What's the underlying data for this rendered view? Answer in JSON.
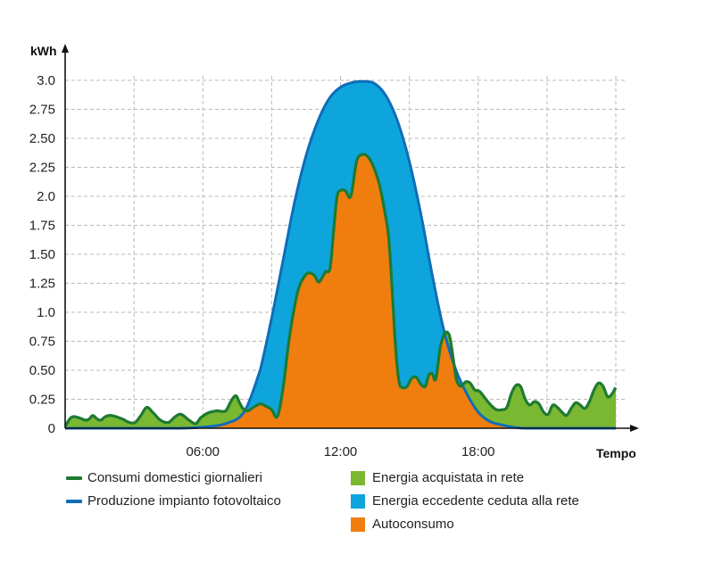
{
  "chart_data": {
    "type": "area",
    "ylabel": "kWh",
    "xlabel": "Tempo",
    "ylim": [
      0,
      3.0
    ],
    "xlim": [
      0,
      24
    ],
    "y_ticks": [
      "0",
      "0.25",
      "0.50",
      "0.75",
      "1.0",
      "1.25",
      "1.50",
      "1.75",
      "2.0",
      "2.25",
      "2.50",
      "2.75",
      "3.0"
    ],
    "x_ticks": [
      {
        "x": 6,
        "label": "06:00"
      },
      {
        "x": 12,
        "label": "12:00"
      },
      {
        "x": 18,
        "label": "18:00"
      }
    ],
    "grid": true,
    "series": [
      {
        "name": "Consumi domestici giornalieri",
        "color": "#1e7a32",
        "x": [
          0,
          0.2,
          0.35,
          0.6,
          0.9,
          1.05,
          1.2,
          1.4,
          1.55,
          1.75,
          2.0,
          2.5,
          2.8,
          3.05,
          3.3,
          3.55,
          3.8,
          4.15,
          4.5,
          4.8,
          5.05,
          5.4,
          5.7,
          5.9,
          6.2,
          6.6,
          7.0,
          7.25,
          7.45,
          7.6,
          7.75,
          7.95,
          8.2,
          8.5,
          8.75,
          9.0,
          9.25,
          9.5,
          9.75,
          10.0,
          10.2,
          10.4,
          10.6,
          10.85,
          11.05,
          11.2,
          11.35,
          11.55,
          11.7,
          11.85,
          12.0,
          12.2,
          12.45,
          12.7,
          12.95,
          13.2,
          13.45,
          13.7,
          13.9,
          14.1,
          14.25,
          14.4,
          14.55,
          14.7,
          14.9,
          15.1,
          15.3,
          15.5,
          15.7,
          15.85,
          16.0,
          16.15,
          16.35,
          16.55,
          16.75,
          16.9,
          17.05,
          17.25,
          17.45,
          17.65,
          17.85,
          18.05,
          18.3,
          18.55,
          18.8,
          19.05,
          19.25,
          19.45,
          19.65,
          19.85,
          20.05,
          20.25,
          20.45,
          20.65,
          20.85,
          21.05,
          21.25,
          21.45,
          21.65,
          21.85,
          22.05,
          22.25,
          22.45,
          22.65,
          22.85,
          23.05,
          23.25,
          23.45,
          23.65,
          23.85,
          24.0
        ],
        "values": [
          0.02,
          0.08,
          0.1,
          0.09,
          0.07,
          0.08,
          0.11,
          0.08,
          0.07,
          0.1,
          0.11,
          0.08,
          0.05,
          0.05,
          0.11,
          0.18,
          0.14,
          0.07,
          0.05,
          0.1,
          0.12,
          0.07,
          0.04,
          0.09,
          0.13,
          0.15,
          0.15,
          0.24,
          0.28,
          0.22,
          0.17,
          0.15,
          0.18,
          0.21,
          0.19,
          0.16,
          0.1,
          0.35,
          0.75,
          1.05,
          1.22,
          1.3,
          1.34,
          1.32,
          1.26,
          1.3,
          1.35,
          1.38,
          1.7,
          2.0,
          2.05,
          2.05,
          2.0,
          2.3,
          2.36,
          2.34,
          2.25,
          2.1,
          1.9,
          1.65,
          1.2,
          0.7,
          0.4,
          0.35,
          0.36,
          0.43,
          0.44,
          0.38,
          0.36,
          0.46,
          0.47,
          0.42,
          0.7,
          0.82,
          0.8,
          0.62,
          0.42,
          0.36,
          0.4,
          0.39,
          0.33,
          0.32,
          0.26,
          0.2,
          0.16,
          0.16,
          0.18,
          0.3,
          0.37,
          0.36,
          0.25,
          0.2,
          0.23,
          0.21,
          0.14,
          0.12,
          0.2,
          0.18,
          0.14,
          0.11,
          0.17,
          0.22,
          0.2,
          0.17,
          0.23,
          0.33,
          0.39,
          0.36,
          0.27,
          0.3,
          0.35
        ]
      },
      {
        "name": "Produzione impianto fotovoltaico",
        "color": "#0f6db8",
        "x": [
          0,
          3.0,
          5.0,
          6.0,
          7.0,
          7.8,
          8.5,
          9.0,
          9.5,
          10.0,
          10.5,
          11.0,
          11.5,
          12.0,
          12.5,
          13.0,
          13.5,
          14.0,
          14.5,
          15.0,
          15.5,
          16.0,
          16.5,
          17.0,
          17.5,
          18.0,
          18.5,
          19.0,
          19.5,
          20.0,
          21.0,
          24.0
        ],
        "values": [
          0,
          0,
          0,
          0.01,
          0.04,
          0.14,
          0.5,
          0.95,
          1.45,
          1.95,
          2.35,
          2.64,
          2.84,
          2.94,
          2.98,
          2.99,
          2.97,
          2.86,
          2.64,
          2.3,
          1.85,
          1.32,
          0.85,
          0.52,
          0.3,
          0.14,
          0.06,
          0.03,
          0.01,
          0,
          0,
          0
        ]
      }
    ],
    "areas": [
      {
        "name": "Energia acquistata in rete",
        "color": "#7ab832"
      },
      {
        "name": "Energia eccedente ceduta alla rete",
        "color": "#0ea5dd"
      },
      {
        "name": "Autoconsumo",
        "color": "#f07e0f"
      }
    ],
    "legend": {
      "lines": [
        {
          "label": "Consumi domestici giornalieri",
          "color": "#1e7a32"
        },
        {
          "label": "Produzione impianto fotovoltaico",
          "color": "#0f6db8"
        }
      ],
      "areas": [
        {
          "label": "Energia acquistata in rete",
          "color": "#7ab832"
        },
        {
          "label": "Energia eccedente ceduta alla rete",
          "color": "#0ea5dd"
        },
        {
          "label": "Autoconsumo",
          "color": "#f07e0f"
        }
      ]
    }
  }
}
